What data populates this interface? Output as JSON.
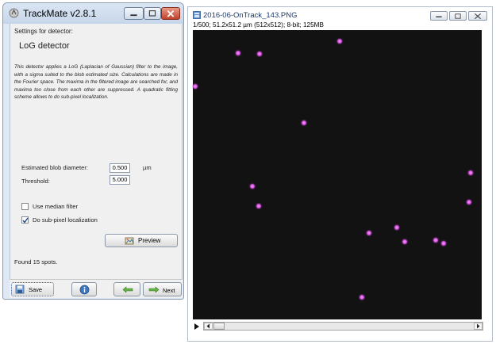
{
  "trackmate": {
    "title": "TrackMate v2.8.1",
    "settings_label": "Settings for detector:",
    "detector_title": "LoG detector",
    "description": "This detector applies a LoG (Laplacian of Gaussian) filter to the image, with a sigma suited to the blob estimated size. Calculations are made in the Fourier space. The maxima in the filtered image are searched for, and maxima too close from each other are suppressed. A quadratic fitting scheme allows to do sub-pixel localization.",
    "blob_diameter_label": "Estimated blob diameter:",
    "blob_diameter_value": "0.500",
    "blob_diameter_unit": "µm",
    "threshold_label": "Threshold:",
    "threshold_value": "5.000",
    "median_filter_label": "Use median filter",
    "median_filter_checked": false,
    "subpixel_label": "Do sub-pixel localization",
    "subpixel_checked": true,
    "preview_label": "Preview",
    "found_text": "Found 15 spots.",
    "save_label": "Save",
    "next_label": "Next",
    "accent_close": "#c2412a"
  },
  "image_window": {
    "title": "2016-06-OnTrack_143.PNG",
    "info": "1/500; 51.2x51.2 µm (512x512); 8-bit; 125MB",
    "spot_color": "#d250dd",
    "background_color": "#121212",
    "spots_um": [
      {
        "x": 26.0,
        "y": 2.0
      },
      {
        "x": 8.0,
        "y": 4.1
      },
      {
        "x": 11.8,
        "y": 4.2
      },
      {
        "x": 0.4,
        "y": 9.9
      },
      {
        "x": 19.7,
        "y": 16.4
      },
      {
        "x": 49.3,
        "y": 25.2
      },
      {
        "x": 10.5,
        "y": 27.7
      },
      {
        "x": 49.0,
        "y": 30.4
      },
      {
        "x": 11.7,
        "y": 31.1
      },
      {
        "x": 31.2,
        "y": 35.9
      },
      {
        "x": 36.2,
        "y": 34.9
      },
      {
        "x": 37.5,
        "y": 37.5
      },
      {
        "x": 43.0,
        "y": 37.2
      },
      {
        "x": 44.4,
        "y": 37.8
      },
      {
        "x": 29.9,
        "y": 47.3
      }
    ]
  }
}
